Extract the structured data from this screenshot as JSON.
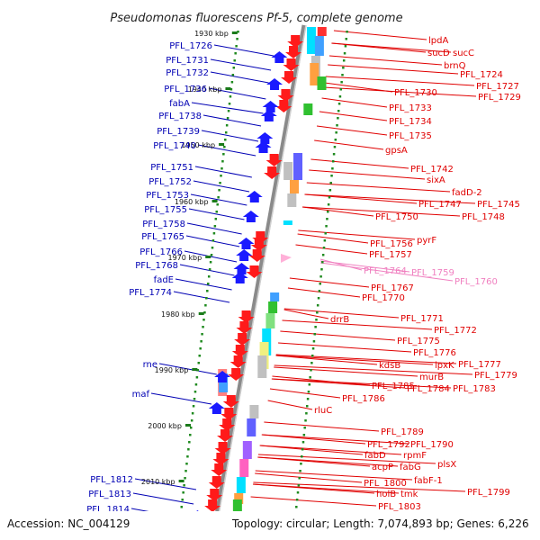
{
  "title": "Pseudomonas fluorescens Pf-5, complete genome",
  "footer": {
    "accession": "Accession: NC_004129",
    "summary": "Topology: circular; Length: 7,074,893 bp; Genes: 6,226"
  },
  "colors": {
    "backbone": "#8a8a8a",
    "scale_tick": "#1f8a1f",
    "left_labels": "#0000b4",
    "right_labels": "#e00000",
    "pink_labels": "#f080c0"
  },
  "kbp_marks": [
    "1930 kbp",
    "1940 kbp",
    "1950 kbp",
    "1960 kbp",
    "1970 kbp",
    "1980 kbp",
    "1990 kbp",
    "2000 kbp",
    "2010 kbp"
  ],
  "left_genes": [
    "PFL_1726",
    "PFL_1731",
    "PFL_1732",
    "PFL_1736",
    "fabA",
    "PFL_1738",
    "PFL_1739",
    "PFL_1740",
    "PFL_1751",
    "PFL_1752",
    "PFL_1753",
    "PFL_1755",
    "PFL_1758",
    "PFL_1765",
    "PFL_1766",
    "PFL_1768",
    "fadE",
    "PFL_1774",
    "rne",
    "maf",
    "PFL_1812",
    "PFL_1813",
    "PFL_1814"
  ],
  "right_genes": [
    "lpdA",
    "sucD",
    "sucC",
    "brnQ",
    "PFL_1724",
    "PFL_1727",
    "PFL_1730",
    "PFL_1729",
    "PFL_1733",
    "PFL_1734",
    "PFL_1735",
    "gpsA",
    "PFL_1742",
    "sixA",
    "fadD-2",
    "PFL_1747",
    "PFL_1745",
    "PFL_1750",
    "PFL_1748",
    "pyrF",
    "PFL_1756",
    "PFL_1757",
    "PFL_1767",
    "PFL_1770",
    "drrB",
    "PFL_1771",
    "PFL_1772",
    "PFL_1775",
    "PFL_1776",
    "kdsB",
    "lpxK",
    "PFL_1777",
    "murB",
    "PFL_1779",
    "PFL_1785",
    "PFL_1784",
    "PFL_1783",
    "PFL_1786",
    "rluC",
    "PFL_1789",
    "PFL_1792",
    "PFL_1790",
    "rpmF",
    "fabD",
    "plsX",
    "acpP",
    "fabG",
    "fabF-1",
    "PFL_1800",
    "PFL_1799",
    "holB",
    "tmk",
    "PFL_1803"
  ],
  "pink_genes": [
    "PFL_1764",
    "PFL_1759",
    "PFL_1760"
  ]
}
